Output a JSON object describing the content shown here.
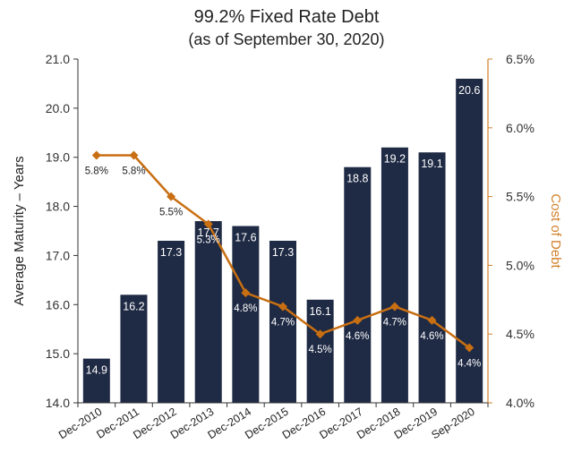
{
  "title": "99.2% Fixed Rate Debt",
  "subtitle": "(as of September 30, 2020)",
  "colors": {
    "bar": "#1f2a44",
    "line": "#c86f12",
    "axis_right": "#d2802a",
    "text": "#222222"
  },
  "chart_data": {
    "type": "bar",
    "title": "99.2% Fixed Rate Debt",
    "subtitle": "(as of September 30, 2020)",
    "categories": [
      "Dec-2010",
      "Dec-2011",
      "Dec-2012",
      "Dec-2013",
      "Dec-2014",
      "Dec-2015",
      "Dec-2016",
      "Dec-2017",
      "Dec-2018",
      "Dec-2019",
      "Sep-2020"
    ],
    "ylabel": "Average Maturity – Years",
    "y2label": "Cost of Debt",
    "ylim": [
      14.0,
      21.0
    ],
    "y2lim": [
      4.0,
      6.5
    ],
    "yticks": [
      "14.0",
      "15.0",
      "16.0",
      "17.0",
      "18.0",
      "19.0",
      "20.0",
      "21.0"
    ],
    "y2ticks": [
      "4.0%",
      "4.5%",
      "5.0%",
      "5.5%",
      "6.0%",
      "6.5%"
    ],
    "grid": false,
    "series": [
      {
        "type": "bar",
        "axis": "left",
        "values": [
          14.9,
          16.2,
          17.3,
          17.7,
          17.6,
          17.3,
          16.1,
          18.8,
          19.2,
          19.1,
          20.6
        ],
        "labels": [
          "14.9",
          "16.2",
          "17.3",
          "17.7",
          "17.6",
          "17.3",
          "16.1",
          "18.8",
          "19.2",
          "19.1",
          "20.6"
        ]
      },
      {
        "type": "line",
        "axis": "right",
        "values": [
          5.8,
          5.8,
          5.5,
          5.3,
          4.8,
          4.7,
          4.5,
          4.6,
          4.7,
          4.6,
          4.4
        ],
        "labels": [
          "5.8%",
          "5.8%",
          "5.5%",
          "5.3%",
          "4.8%",
          "4.7%",
          "4.5%",
          "4.6%",
          "4.7%",
          "4.6%",
          "4.4%"
        ]
      }
    ]
  }
}
